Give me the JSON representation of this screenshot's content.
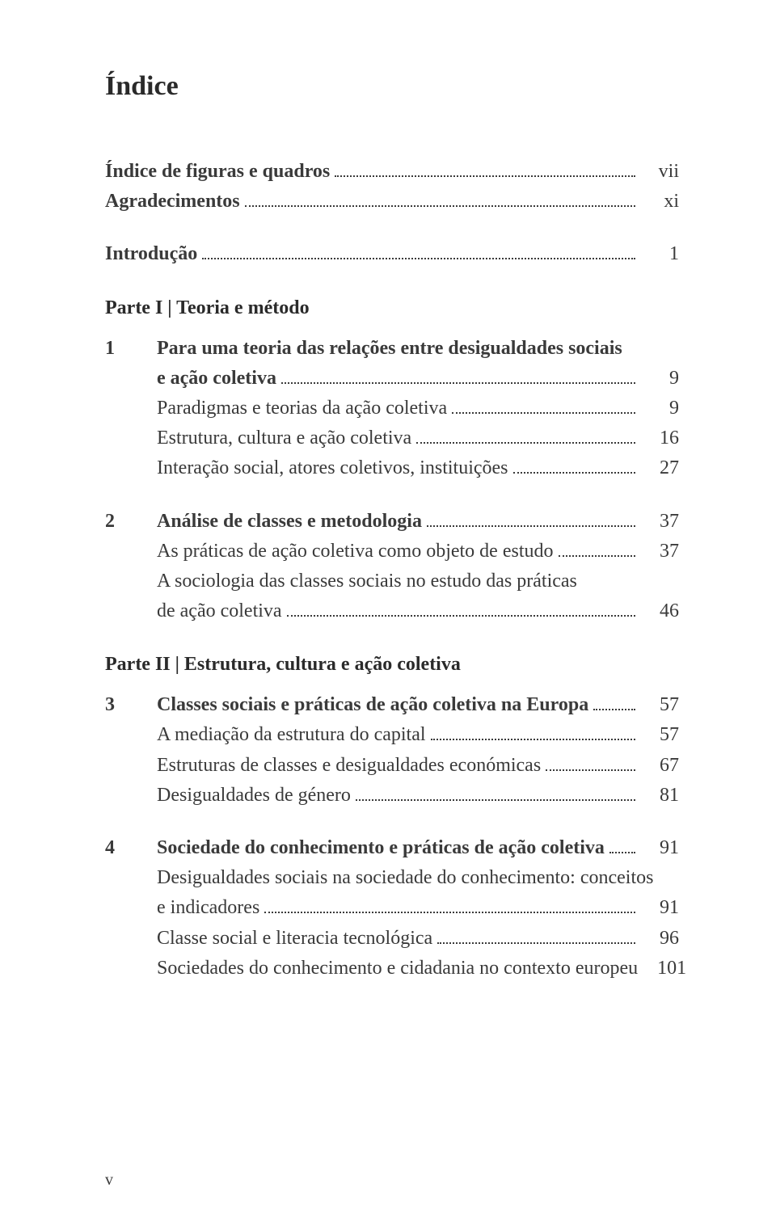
{
  "title": "Índice",
  "folio": "v",
  "colors": {
    "text": "#2a2a2a",
    "bodyText": "#3a3a3a",
    "leaders": "#3a3a3a",
    "background": "#ffffff"
  },
  "typography": {
    "family": "Palatino",
    "title_fontsize_pt": 26,
    "body_fontsize_pt": 18,
    "title_weight": 700,
    "bold_weight": 700
  },
  "entries": {
    "figuras": {
      "label": "Índice de figuras e quadros",
      "page": "vii"
    },
    "agradecimentos": {
      "label": "Agradecimentos",
      "page": "xi"
    },
    "introducao": {
      "label": "Introdução",
      "page": "1"
    },
    "parteI": {
      "label": "Parte I | Teoria e método"
    },
    "cap1": {
      "num": "1",
      "title_line1": "Para uma teoria das relações entre desigualdades sociais",
      "title_line2": "e ação coletiva",
      "page": "9",
      "sub": {
        "a": {
          "label": "Paradigmas e teorias da ação coletiva",
          "page": "9"
        },
        "b": {
          "label": "Estrutura, cultura e ação coletiva",
          "page": "16"
        },
        "c": {
          "label": "Interação social, atores coletivos, instituições",
          "page": "27"
        }
      }
    },
    "cap2": {
      "num": "2",
      "title": "Análise de classes e metodologia",
      "page": "37",
      "sub": {
        "a": {
          "label": "As práticas de ação coletiva como objeto de estudo",
          "page": "37"
        },
        "b_line1": "A sociologia das classes sociais no estudo das práticas",
        "b_line2": "de ação coletiva",
        "b_page": "46"
      }
    },
    "parteII": {
      "label": "Parte II | Estrutura, cultura e ação coletiva"
    },
    "cap3": {
      "num": "3",
      "title": "Classes sociais e práticas de ação coletiva na Europa",
      "page": "57",
      "sub": {
        "a": {
          "label": "A mediação da estrutura do capital",
          "page": "57"
        },
        "b": {
          "label": "Estruturas de classes e desigualdades económicas",
          "page": "67"
        },
        "c": {
          "label": "Desigualdades de género",
          "page": "81"
        }
      }
    },
    "cap4": {
      "num": "4",
      "title": "Sociedade do conhecimento e práticas de ação coletiva",
      "page": "91",
      "sub": {
        "a_line1": "Desigualdades sociais na sociedade do conhecimento: conceitos",
        "a_line2": "e indicadores",
        "a_page": "91",
        "b": {
          "label": "Classe social e literacia tecnológica",
          "page": "96"
        },
        "c": {
          "label": "Sociedades do conhecimento e cidadania no contexto europeu",
          "page": "101"
        }
      }
    }
  }
}
